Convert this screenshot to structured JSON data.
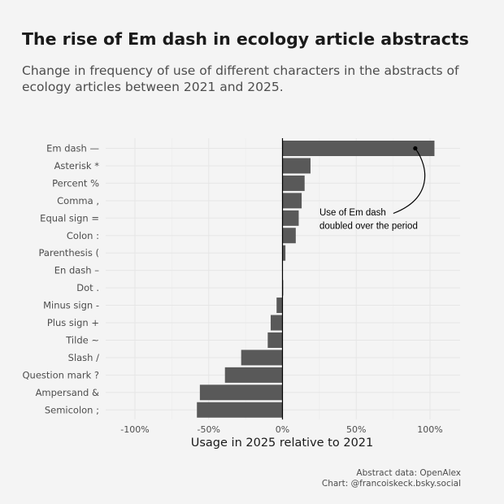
{
  "title": "The rise of Em dash in ecology article abstracts",
  "subtitle": "Change in frequency of use of different characters in the abstracts of ecology articles between 2021 and 2025.",
  "caption": {
    "line1": "Abstract data: OpenAlex",
    "line2": "Chart: @francoiskeck.bsky.social"
  },
  "colors": {
    "background": "#f4f4f4",
    "bar": "#595959",
    "grid": "#e6e6e6",
    "text": "#1a1a1a",
    "muted": "#4d4d4d"
  },
  "chart_data": {
    "type": "bar",
    "orientation": "horizontal",
    "categories": [
      "Em dash —",
      "Asterisk *",
      "Percent %",
      "Comma ,",
      "Equal sign =",
      "Colon :",
      "Parenthesis (",
      "En dash –",
      "Dot .",
      "Minus sign -",
      "Plus sign +",
      "Tilde ~",
      "Slash /",
      "Question mark ?",
      "Ampersand &",
      "Semicolon ;"
    ],
    "values": [
      103,
      19,
      15,
      13,
      11,
      9,
      2,
      0,
      0.5,
      -4,
      -8,
      -10,
      -28,
      -39,
      -56,
      -58
    ],
    "xlabel": "Usage in 2025 relative to 2021",
    "ylabel": "",
    "xlim": [
      -125,
      120
    ],
    "xticks": [
      -100,
      -50,
      0,
      50,
      100
    ],
    "xtick_labels": [
      "-100%",
      "-50%",
      "0%",
      "50%",
      "100%"
    ],
    "grid": true,
    "annotation": {
      "lines": [
        "Use of Em dash",
        "doubled over the period"
      ],
      "target_category": "Em dash —",
      "target_value": 90
    }
  }
}
